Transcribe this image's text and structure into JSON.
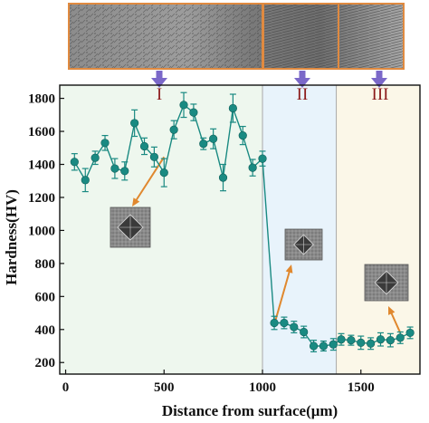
{
  "chart_data": {
    "type": "scatter",
    "xlabel": "Distance from surface(μm)",
    "ylabel": "Hardness(HV)",
    "xlim": [
      -30,
      1800
    ],
    "ylim": [
      130,
      1880
    ],
    "xticks": [
      0,
      500,
      1000,
      1500
    ],
    "yticks": [
      200,
      400,
      600,
      800,
      1000,
      1200,
      1400,
      1600,
      1800
    ],
    "grid": false,
    "series": [
      {
        "color": "#1a8a82",
        "x": [
          45,
          100,
          150,
          200,
          250,
          300,
          350,
          400,
          450,
          500,
          550,
          600,
          650,
          700,
          750,
          800,
          850,
          900,
          950,
          1000,
          1060,
          1110,
          1160,
          1210,
          1260,
          1310,
          1360,
          1400,
          1450,
          1500,
          1550,
          1600,
          1650,
          1700,
          1750
        ],
        "y": [
          1415,
          1305,
          1440,
          1530,
          1375,
          1360,
          1650,
          1510,
          1445,
          1350,
          1610,
          1760,
          1715,
          1525,
          1555,
          1320,
          1740,
          1575,
          1380,
          1435,
          440,
          440,
          415,
          385,
          300,
          300,
          310,
          340,
          335,
          320,
          315,
          340,
          335,
          350,
          380
        ],
        "err": [
          50,
          70,
          40,
          45,
          60,
          55,
          80,
          50,
          60,
          85,
          55,
          75,
          50,
          35,
          60,
          80,
          85,
          55,
          50,
          45,
          40,
          35,
          35,
          35,
          35,
          30,
          35,
          35,
          30,
          40,
          35,
          40,
          40,
          35,
          35
        ]
      }
    ],
    "regions": [
      {
        "label": "I",
        "from": -30,
        "to": 1000,
        "color": "#eef7ee"
      },
      {
        "label": "II",
        "from": 1000,
        "to": 1375,
        "color": "#e8f3fb"
      },
      {
        "label": "III",
        "from": 1375,
        "to": 1800,
        "color": "#fbf7e8"
      }
    ]
  }
}
